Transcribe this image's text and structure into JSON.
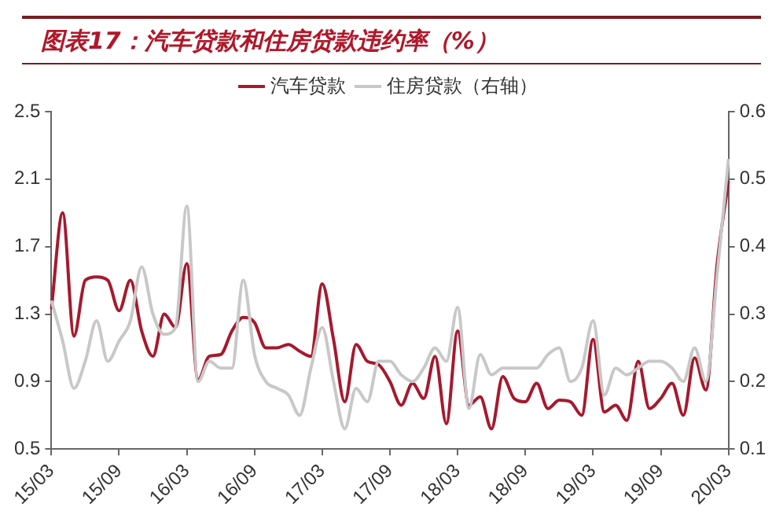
{
  "chart_data": {
    "type": "line",
    "title": "图表17：汽车贷款和住房贷款违约率（%）",
    "categories": [
      "15/03",
      null,
      null,
      null,
      null,
      null,
      "15/09",
      null,
      null,
      null,
      null,
      null,
      "16/03",
      null,
      null,
      null,
      null,
      null,
      "16/09",
      null,
      null,
      null,
      null,
      null,
      "17/03",
      null,
      null,
      null,
      null,
      null,
      "17/09",
      null,
      null,
      null,
      null,
      null,
      "18/03",
      null,
      null,
      null,
      null,
      null,
      "18/09",
      null,
      null,
      null,
      null,
      null,
      "19/03",
      null,
      null,
      null,
      null,
      null,
      "19/09",
      null,
      null,
      null,
      null,
      null,
      "20/03"
    ],
    "series": [
      {
        "name": "汽车贷款",
        "color": "#a6192e",
        "values": [
          1.33,
          1.9,
          1.17,
          1.5,
          1.52,
          1.5,
          1.32,
          1.5,
          1.2,
          1.05,
          1.3,
          1.22,
          1.6,
          0.91,
          1.05,
          1.06,
          1.2,
          1.28,
          1.25,
          1.1,
          1.1,
          1.12,
          1.08,
          1.05,
          1.48,
          1.15,
          0.78,
          1.12,
          1.02,
          1.0,
          0.9,
          0.76,
          0.89,
          0.8,
          1.05,
          0.65,
          1.2,
          0.76,
          0.81,
          0.62,
          0.93,
          0.8,
          0.78,
          0.89,
          0.74,
          0.79,
          0.78,
          0.7,
          1.15,
          0.72,
          0.76,
          0.67,
          1.02,
          0.74,
          0.8,
          0.89,
          0.7,
          1.04,
          0.85,
          1.6,
          2.09
        ]
      },
      {
        "name": "住房贷款（右轴）",
        "color": "#c8c8c8",
        "axis": "y2",
        "values": [
          0.32,
          0.26,
          0.19,
          0.23,
          0.29,
          0.23,
          0.26,
          0.29,
          0.37,
          0.3,
          0.27,
          0.28,
          0.46,
          0.2,
          0.23,
          0.22,
          0.22,
          0.35,
          0.24,
          0.2,
          0.19,
          0.18,
          0.15,
          0.22,
          0.28,
          0.2,
          0.13,
          0.19,
          0.17,
          0.23,
          0.23,
          0.21,
          0.2,
          0.22,
          0.25,
          0.23,
          0.31,
          0.16,
          0.24,
          0.21,
          0.22,
          0.22,
          0.22,
          0.22,
          0.24,
          0.25,
          0.2,
          0.22,
          0.29,
          0.18,
          0.22,
          0.21,
          0.22,
          0.23,
          0.23,
          0.22,
          0.2,
          0.25,
          0.2,
          0.36,
          0.53
        ]
      }
    ],
    "ylim": [
      0.5,
      2.5
    ],
    "yticks": [
      0.5,
      0.9,
      1.3,
      1.7,
      2.1,
      2.5
    ],
    "y2lim": [
      0.1,
      0.6
    ],
    "y2ticks": [
      0.1,
      0.2,
      0.3,
      0.4,
      0.5,
      0.6
    ],
    "legend": "top",
    "grid": false,
    "marker": "none",
    "line_style": "solid"
  }
}
